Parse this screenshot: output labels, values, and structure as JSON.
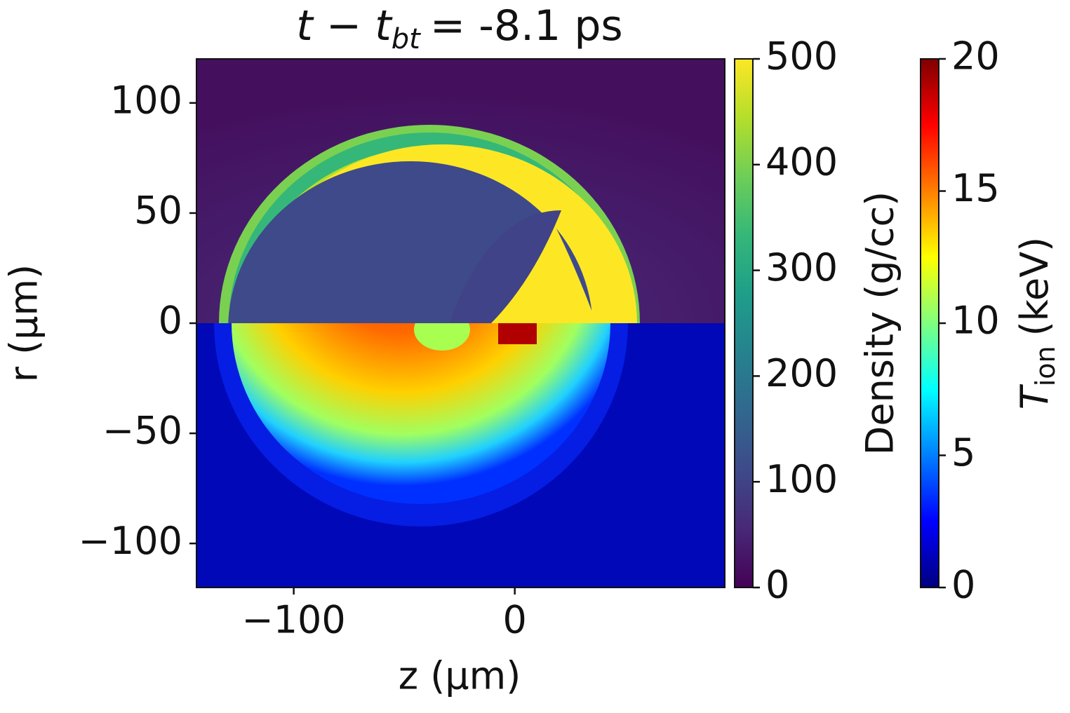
{
  "chart_data": {
    "type": "heatmap",
    "title": {
      "italic_1": "t",
      "operator": "−",
      "italic_2": "t",
      "subscript": "bt",
      "rest": "= -8.1 ps"
    },
    "x_label": "z (µm)",
    "y_label": "r (µm)",
    "xlim": [
      -144,
      95
    ],
    "ylim": [
      -120,
      120
    ],
    "xticks": [
      {
        "value": -100,
        "label": "−100"
      },
      0
    ],
    "yticks": [
      {
        "value": -100,
        "label": "−100"
      },
      {
        "value": -50,
        "label": "−50"
      },
      0,
      50,
      100
    ],
    "colorbars": [
      {
        "cmap": "viridis",
        "label": "Density (g/cc)",
        "lim": [
          0,
          500
        ],
        "ticks": [
          0,
          100,
          200,
          300,
          400,
          500
        ]
      },
      {
        "cmap": "jet",
        "label_italic": "T",
        "label_sub": "ion",
        "label_rest": "(keV)",
        "lim": [
          0,
          20
        ],
        "ticks": [
          0,
          5,
          10,
          15,
          20
        ]
      }
    ]
  }
}
